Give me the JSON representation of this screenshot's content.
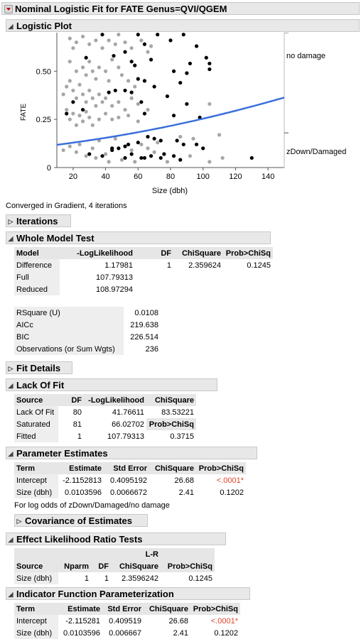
{
  "report_title": "Nominal Logistic Fit for FATE Genus=QVI/QGEM",
  "logistic_plot": {
    "header": "Logistic Plot",
    "y_axis_title": "FATE",
    "x_axis_title": "Size (dbh)",
    "y_ticks": [
      "0",
      "0.25",
      "0.50"
    ],
    "x_ticks": [
      "20",
      "40",
      "60",
      "80",
      "100",
      "120",
      "140"
    ],
    "right_labels": [
      "no damage",
      "zDown/Damaged"
    ]
  },
  "chart_data": {
    "type": "scatter",
    "xlabel": "Size (dbh)",
    "ylabel": "FATE",
    "xlim": [
      10,
      150
    ],
    "ylim": [
      0,
      0.7
    ],
    "divider_level": 0.18,
    "curve": {
      "intercept": -2.1152813,
      "slope": 0.0103596,
      "color": "#3a6fdc"
    },
    "series": [
      {
        "color": "#000000",
        "points": [
          [
            38,
            0.69
          ],
          [
            60,
            0.69
          ],
          [
            72,
            0.69
          ],
          [
            88,
            0.69
          ],
          [
            80,
            0.66
          ],
          [
            64,
            0.64
          ],
          [
            96,
            0.63
          ],
          [
            102,
            0.57
          ],
          [
            104,
            0.54
          ],
          [
            104,
            0.51
          ],
          [
            52,
            0.6
          ],
          [
            45,
            0.58
          ],
          [
            28,
            0.57
          ],
          [
            56,
            0.55
          ],
          [
            68,
            0.56
          ],
          [
            92,
            0.54
          ],
          [
            90,
            0.49
          ],
          [
            82,
            0.5
          ],
          [
            58,
            0.53
          ],
          [
            60,
            0.46
          ],
          [
            64,
            0.45
          ],
          [
            70,
            0.42
          ],
          [
            86,
            0.44
          ],
          [
            52,
            0.4
          ],
          [
            46,
            0.4
          ],
          [
            56,
            0.39
          ],
          [
            42,
            0.39
          ],
          [
            78,
            0.37
          ],
          [
            62,
            0.34
          ],
          [
            90,
            0.33
          ],
          [
            64,
            0.28
          ],
          [
            82,
            0.27
          ],
          [
            98,
            0.26
          ],
          [
            16,
            0.28
          ],
          [
            20,
            0.34
          ],
          [
            26,
            0.3
          ],
          [
            70,
            0.15
          ],
          [
            66,
            0.16
          ],
          [
            74,
            0.14
          ],
          [
            84,
            0.14
          ],
          [
            88,
            0.12
          ],
          [
            60,
            0.13
          ],
          [
            52,
            0.11
          ],
          [
            48,
            0.1
          ],
          [
            44,
            0.09
          ],
          [
            56,
            0.07
          ],
          [
            68,
            0.06
          ],
          [
            76,
            0.07
          ],
          [
            100,
            0.1
          ],
          [
            96,
            0.12
          ],
          [
            82,
            0.06
          ],
          [
            62,
            0.05
          ],
          [
            30,
            0.07
          ],
          [
            38,
            0.06
          ],
          [
            52,
            0.05
          ],
          [
            74,
            0.05
          ],
          [
            130,
            0.05
          ],
          [
            44,
            0.1
          ],
          [
            54,
            0.12
          ],
          [
            64,
            0.05
          ],
          [
            86,
            0.04
          ]
        ]
      },
      {
        "color": "#a6a6a6",
        "points": [
          [
            18,
            0.67
          ],
          [
            20,
            0.62
          ],
          [
            22,
            0.65
          ],
          [
            26,
            0.68
          ],
          [
            30,
            0.64
          ],
          [
            34,
            0.66
          ],
          [
            38,
            0.62
          ],
          [
            42,
            0.66
          ],
          [
            46,
            0.64
          ],
          [
            48,
            0.69
          ],
          [
            52,
            0.65
          ],
          [
            56,
            0.62
          ],
          [
            62,
            0.66
          ],
          [
            66,
            0.6
          ],
          [
            68,
            0.63
          ],
          [
            18,
            0.55
          ],
          [
            22,
            0.5
          ],
          [
            26,
            0.52
          ],
          [
            28,
            0.48
          ],
          [
            30,
            0.55
          ],
          [
            32,
            0.5
          ],
          [
            34,
            0.46
          ],
          [
            36,
            0.52
          ],
          [
            40,
            0.5
          ],
          [
            42,
            0.45
          ],
          [
            44,
            0.56
          ],
          [
            48,
            0.52
          ],
          [
            50,
            0.48
          ],
          [
            54,
            0.45
          ],
          [
            58,
            0.42
          ],
          [
            14,
            0.38
          ],
          [
            16,
            0.42
          ],
          [
            18,
            0.45
          ],
          [
            20,
            0.4
          ],
          [
            22,
            0.36
          ],
          [
            24,
            0.43
          ],
          [
            26,
            0.38
          ],
          [
            28,
            0.34
          ],
          [
            30,
            0.4
          ],
          [
            32,
            0.36
          ],
          [
            34,
            0.32
          ],
          [
            36,
            0.38
          ],
          [
            38,
            0.34
          ],
          [
            40,
            0.36
          ],
          [
            44,
            0.32
          ],
          [
            48,
            0.34
          ],
          [
            52,
            0.3
          ],
          [
            56,
            0.36
          ],
          [
            60,
            0.33
          ],
          [
            66,
            0.3
          ],
          [
            16,
            0.3
          ],
          [
            18,
            0.25
          ],
          [
            20,
            0.28
          ],
          [
            22,
            0.22
          ],
          [
            24,
            0.27
          ],
          [
            26,
            0.24
          ],
          [
            28,
            0.29
          ],
          [
            30,
            0.26
          ],
          [
            32,
            0.22
          ],
          [
            36,
            0.25
          ],
          [
            40,
            0.28
          ],
          [
            44,
            0.25
          ],
          [
            48,
            0.26
          ],
          [
            54,
            0.27
          ],
          [
            60,
            0.24
          ],
          [
            104,
            0.33
          ],
          [
            110,
            0.17
          ],
          [
            86,
            0.16
          ],
          [
            94,
            0.15
          ],
          [
            72,
            0.13
          ],
          [
            14,
            0.09
          ],
          [
            18,
            0.11
          ],
          [
            22,
            0.08
          ],
          [
            24,
            0.12
          ],
          [
            28,
            0.06
          ],
          [
            32,
            0.1
          ],
          [
            34,
            0.05
          ],
          [
            40,
            0.07
          ],
          [
            42,
            0.03
          ],
          [
            50,
            0.04
          ],
          [
            56,
            0.09
          ],
          [
            58,
            0.03
          ],
          [
            66,
            0.1
          ],
          [
            70,
            0.08
          ],
          [
            78,
            0.03
          ],
          [
            92,
            0.06
          ],
          [
            104,
            0.03
          ],
          [
            112,
            0.05
          ],
          [
            36,
            0.14
          ],
          [
            46,
            0.15
          ],
          [
            62,
            0.12
          ]
        ]
      }
    ]
  },
  "convergence_note": "Converged in Gradient, 4 iterations",
  "iterations": {
    "header": "Iterations"
  },
  "whole_model_test": {
    "header": "Whole Model Test",
    "columns": [
      "Model",
      "-LogLikelihood",
      "DF",
      "ChiSquare",
      "Prob>ChiSq"
    ],
    "rows": [
      [
        "Difference",
        "1.17981",
        "1",
        "2.359624",
        "0.1245"
      ],
      [
        "Full",
        "107.79313",
        "",
        "",
        ""
      ],
      [
        "Reduced",
        "108.97294",
        "",
        "",
        ""
      ]
    ],
    "stats": [
      [
        "RSquare (U)",
        "0.0108"
      ],
      [
        "AICc",
        "219.638"
      ],
      [
        "BIC",
        "226.514"
      ],
      [
        "Observations (or Sum Wgts)",
        "236"
      ]
    ]
  },
  "fit_details": {
    "header": "Fit Details"
  },
  "lack_of_fit": {
    "header": "Lack Of Fit",
    "columns": [
      "Source",
      "DF",
      "-LogLikelihood",
      "ChiSquare"
    ],
    "rows": [
      [
        "Lack Of Fit",
        "80",
        "41.76611",
        "83.53221"
      ],
      [
        "Saturated",
        "81",
        "66.02702",
        "Prob>ChiSq"
      ],
      [
        "Fitted",
        "1",
        "107.79313",
        "0.3715"
      ]
    ]
  },
  "parameter_estimates": {
    "header": "Parameter Estimates",
    "columns": [
      "Term",
      "Estimate",
      "Std Error",
      "ChiSquare",
      "Prob>ChiSq"
    ],
    "rows": [
      [
        "Intercept",
        "-2.1152813",
        "0.4095192",
        "26.68",
        "<.0001*"
      ],
      [
        "Size (dbh)",
        "0.0103596",
        "0.0066672",
        "2.41",
        "0.1202"
      ]
    ],
    "note": "For log odds of zDown/Damaged/no damage"
  },
  "covariance": {
    "header": "Covariance of Estimates"
  },
  "effect_lr_tests": {
    "header": "Effect Likelihood Ratio Tests",
    "supercol": "L-R",
    "columns": [
      "Source",
      "Nparm",
      "DF",
      "ChiSquare",
      "Prob>ChiSq"
    ],
    "rows": [
      [
        "Size (dbh)",
        "1",
        "1",
        "2.3596242",
        "0.1245"
      ]
    ]
  },
  "indicator_function": {
    "header": "Indicator Function Parameterization",
    "columns": [
      "Term",
      "Estimate",
      "Std Error",
      "ChiSquare",
      "Prob>ChiSq"
    ],
    "rows": [
      [
        "Intercept",
        "-2.115281",
        "0.409519",
        "26.68",
        "<.0001*"
      ],
      [
        "Size (dbh)",
        "0.0103596",
        "0.006667",
        "2.41",
        "0.1202"
      ]
    ]
  },
  "colors": {
    "significant_p": "#e0442a",
    "curve": "#3a6fdc",
    "header_bg": "#e8e8e8"
  }
}
